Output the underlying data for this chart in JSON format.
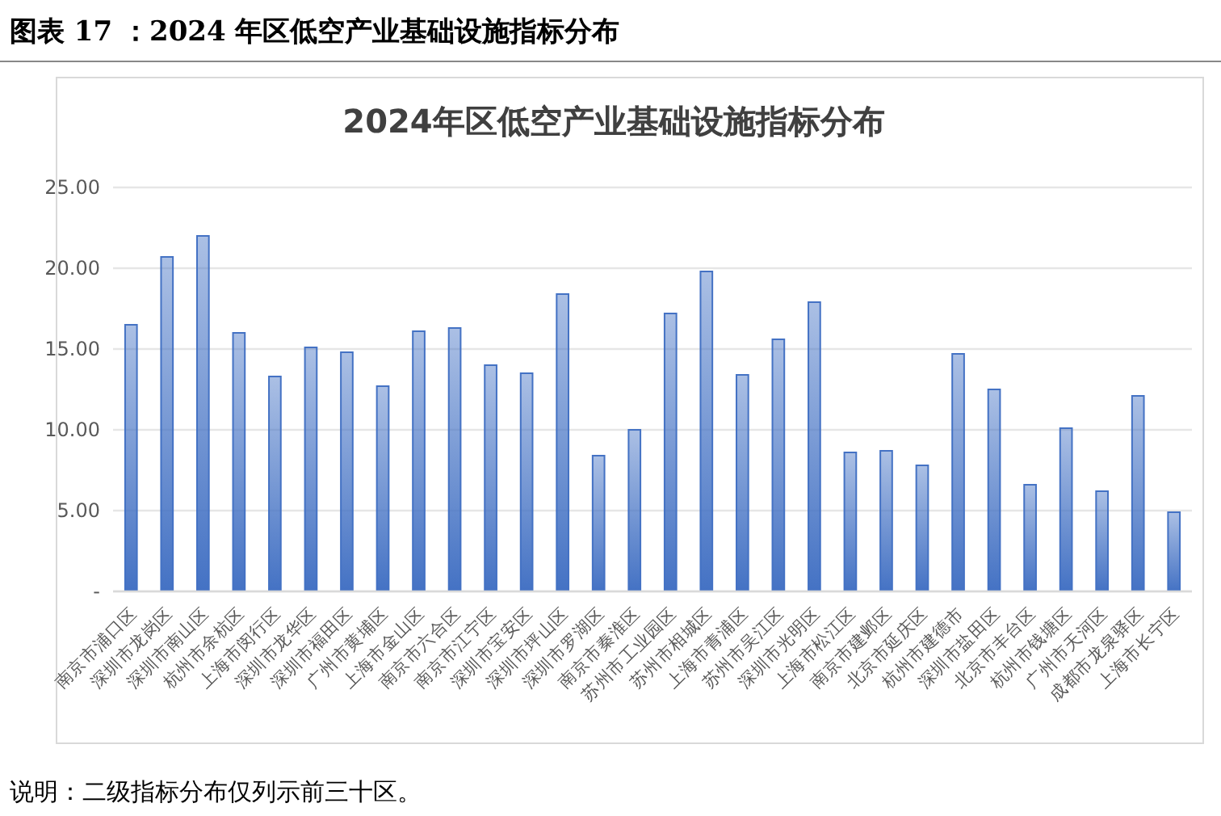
{
  "chart_data": {
    "type": "bar",
    "title": "图表 17 ：2024 年区低空产业基础设施指标分布",
    "subtitle": "2024年区低空产业基础设施指标分布",
    "categories": [
      "南京市浦口区",
      "深圳市龙岗区",
      "深圳市南山区",
      "杭州市余杭区",
      "上海市闵行区",
      "深圳市龙华区",
      "深圳市福田区",
      "广州市黄埔区",
      "上海市金山区",
      "南京市六合区",
      "南京市江宁区",
      "深圳市宝安区",
      "深圳市坪山区",
      "深圳市罗湖区",
      "南京市秦淮区",
      "苏州市工业园区",
      "苏州市相城区",
      "上海市青浦区",
      "苏州市吴江区",
      "深圳市光明区",
      "上海市松江区",
      "南京市建邺区",
      "北京市延庆区",
      "杭州市建德市",
      "深圳市盐田区",
      "北京市丰台区",
      "杭州市钱塘区",
      "广州市天河区",
      "成都市龙泉驿区",
      "上海市长宁区"
    ],
    "values": [
      16.5,
      20.7,
      22.0,
      16.0,
      13.3,
      15.1,
      14.8,
      12.7,
      16.1,
      16.3,
      14.0,
      13.5,
      18.4,
      8.4,
      10.0,
      17.2,
      19.8,
      13.4,
      15.6,
      17.9,
      8.6,
      8.7,
      7.8,
      14.7,
      12.5,
      6.6,
      10.1,
      6.2,
      12.1,
      4.9
    ],
    "color": "#4472c4",
    "ylim": [
      0,
      25
    ],
    "yticks": [
      {
        "value": 0,
        "label": "-"
      },
      {
        "value": 5,
        "label": "5.00"
      },
      {
        "value": 10,
        "label": "10.00"
      },
      {
        "value": 15,
        "label": "15.00"
      },
      {
        "value": 20,
        "label": "20.00"
      },
      {
        "value": 25,
        "label": "25.00"
      }
    ],
    "grid": "y",
    "annotations": [
      "说明：二级指标分布仅列示前三十区。"
    ]
  }
}
